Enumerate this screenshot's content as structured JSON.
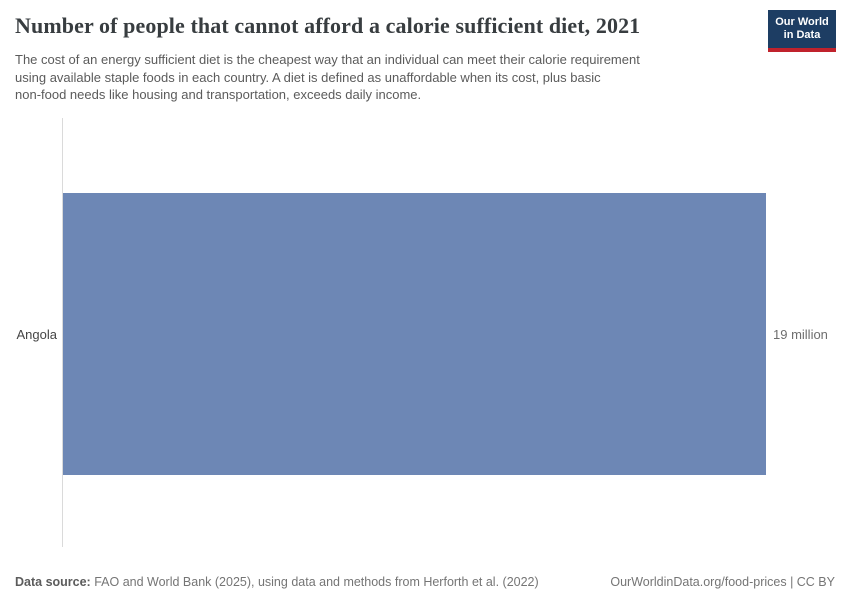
{
  "header": {
    "title": "Number of people that cannot afford a calorie sufficient diet, 2021",
    "subtitle_lines": [
      "The cost of an energy sufficient diet is the cheapest way that an individual can meet their calorie requirement",
      "using available staple foods in each country. A diet is defined as unaffordable when its cost, plus basic",
      "non-food needs like housing and transportation, exceeds daily income."
    ],
    "logo": {
      "line1": "Our World",
      "line2": "in Data"
    }
  },
  "chart_data": {
    "type": "bar",
    "orientation": "horizontal",
    "title": "Number of people that cannot afford a calorie sufficient diet, 2021",
    "year": 2021,
    "categories": [
      "Angola"
    ],
    "values": [
      19000000
    ],
    "value_labels": [
      "19 million"
    ],
    "unit": "people",
    "xlim": [
      0,
      19000000
    ],
    "grid": false,
    "legend": "none",
    "bar_color": "#6d87b5",
    "axis_color": "#dadada"
  },
  "footer": {
    "source_label": "Data source:",
    "source_text": "FAO and World Bank (2025), using data and methods from Herforth et al. (2022)",
    "link_text": "OurWorldinData.org/food-prices | CC BY"
  }
}
